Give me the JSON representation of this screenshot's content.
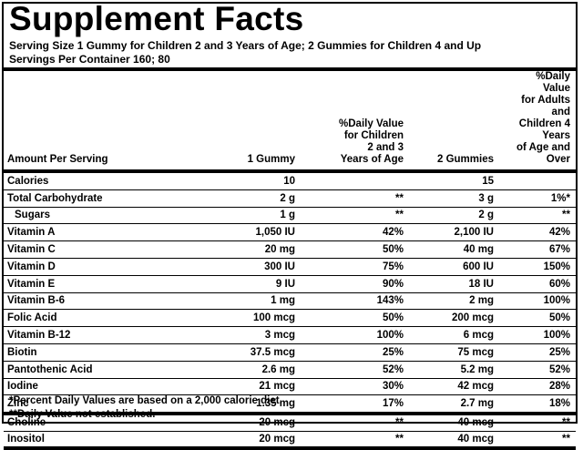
{
  "title": "Supplement Facts",
  "serving": [
    "Serving Size 1 Gummy for Children 2 and 3 Years of Age; 2 Gummies for Children 4 and Up",
    "Servings Per Container 160; 80"
  ],
  "table": {
    "header": [
      "Amount Per Serving",
      "1 Gummy",
      "%Daily Value\nfor Children\n2 and 3\nYears of Age",
      "2 Gummies",
      "%Daily Value\nfor Adults and\nChildren 4 Years\nof Age and Over"
    ],
    "rows": [
      [
        "Calories",
        "10",
        "",
        "15",
        ""
      ],
      [
        "Total Carbohydrate",
        "2 g",
        "**",
        "3 g",
        "1%*"
      ],
      [
        "Sugars",
        "1 g",
        "**",
        "2 g",
        "**"
      ],
      [
        "Vitamin A",
        "1,050 IU",
        "42%",
        "2,100 IU",
        "42%"
      ],
      [
        "Vitamin C",
        "20 mg",
        "50%",
        "40 mg",
        "67%"
      ],
      [
        "Vitamin D",
        "300 IU",
        "75%",
        "600 IU",
        "150%"
      ],
      [
        "Vitamin E",
        "9 IU",
        "90%",
        "18 IU",
        "60%"
      ],
      [
        "Vitamin B-6",
        "1 mg",
        "143%",
        "2 mg",
        "100%"
      ],
      [
        "Folic Acid",
        "100 mcg",
        "50%",
        "200 mcg",
        "50%"
      ],
      [
        "Vitamin B-12",
        "3 mcg",
        "100%",
        "6 mcg",
        "100%"
      ],
      [
        "Biotin",
        "37.5 mcg",
        "25%",
        "75 mcg",
        "25%"
      ],
      [
        "Pantothenic Acid",
        "2.6 mg",
        "52%",
        "5.2 mg",
        "52%"
      ],
      [
        "Iodine",
        "21 mcg",
        "30%",
        "42 mcg",
        "28%"
      ],
      [
        "Zinc",
        "1.35 mg",
        "17%",
        "2.7 mg",
        "18%"
      ]
    ],
    "other_rows": [
      [
        "Choline",
        "20 mcg",
        "**",
        "40 mcg",
        "**"
      ],
      [
        "Inositol",
        "20 mcg",
        "**",
        "40 mcg",
        "**"
      ]
    ]
  },
  "footnotes": [
    "*Percent Daily Values are based on a 2,000 calorie diet.",
    "**Daily Value not established."
  ]
}
